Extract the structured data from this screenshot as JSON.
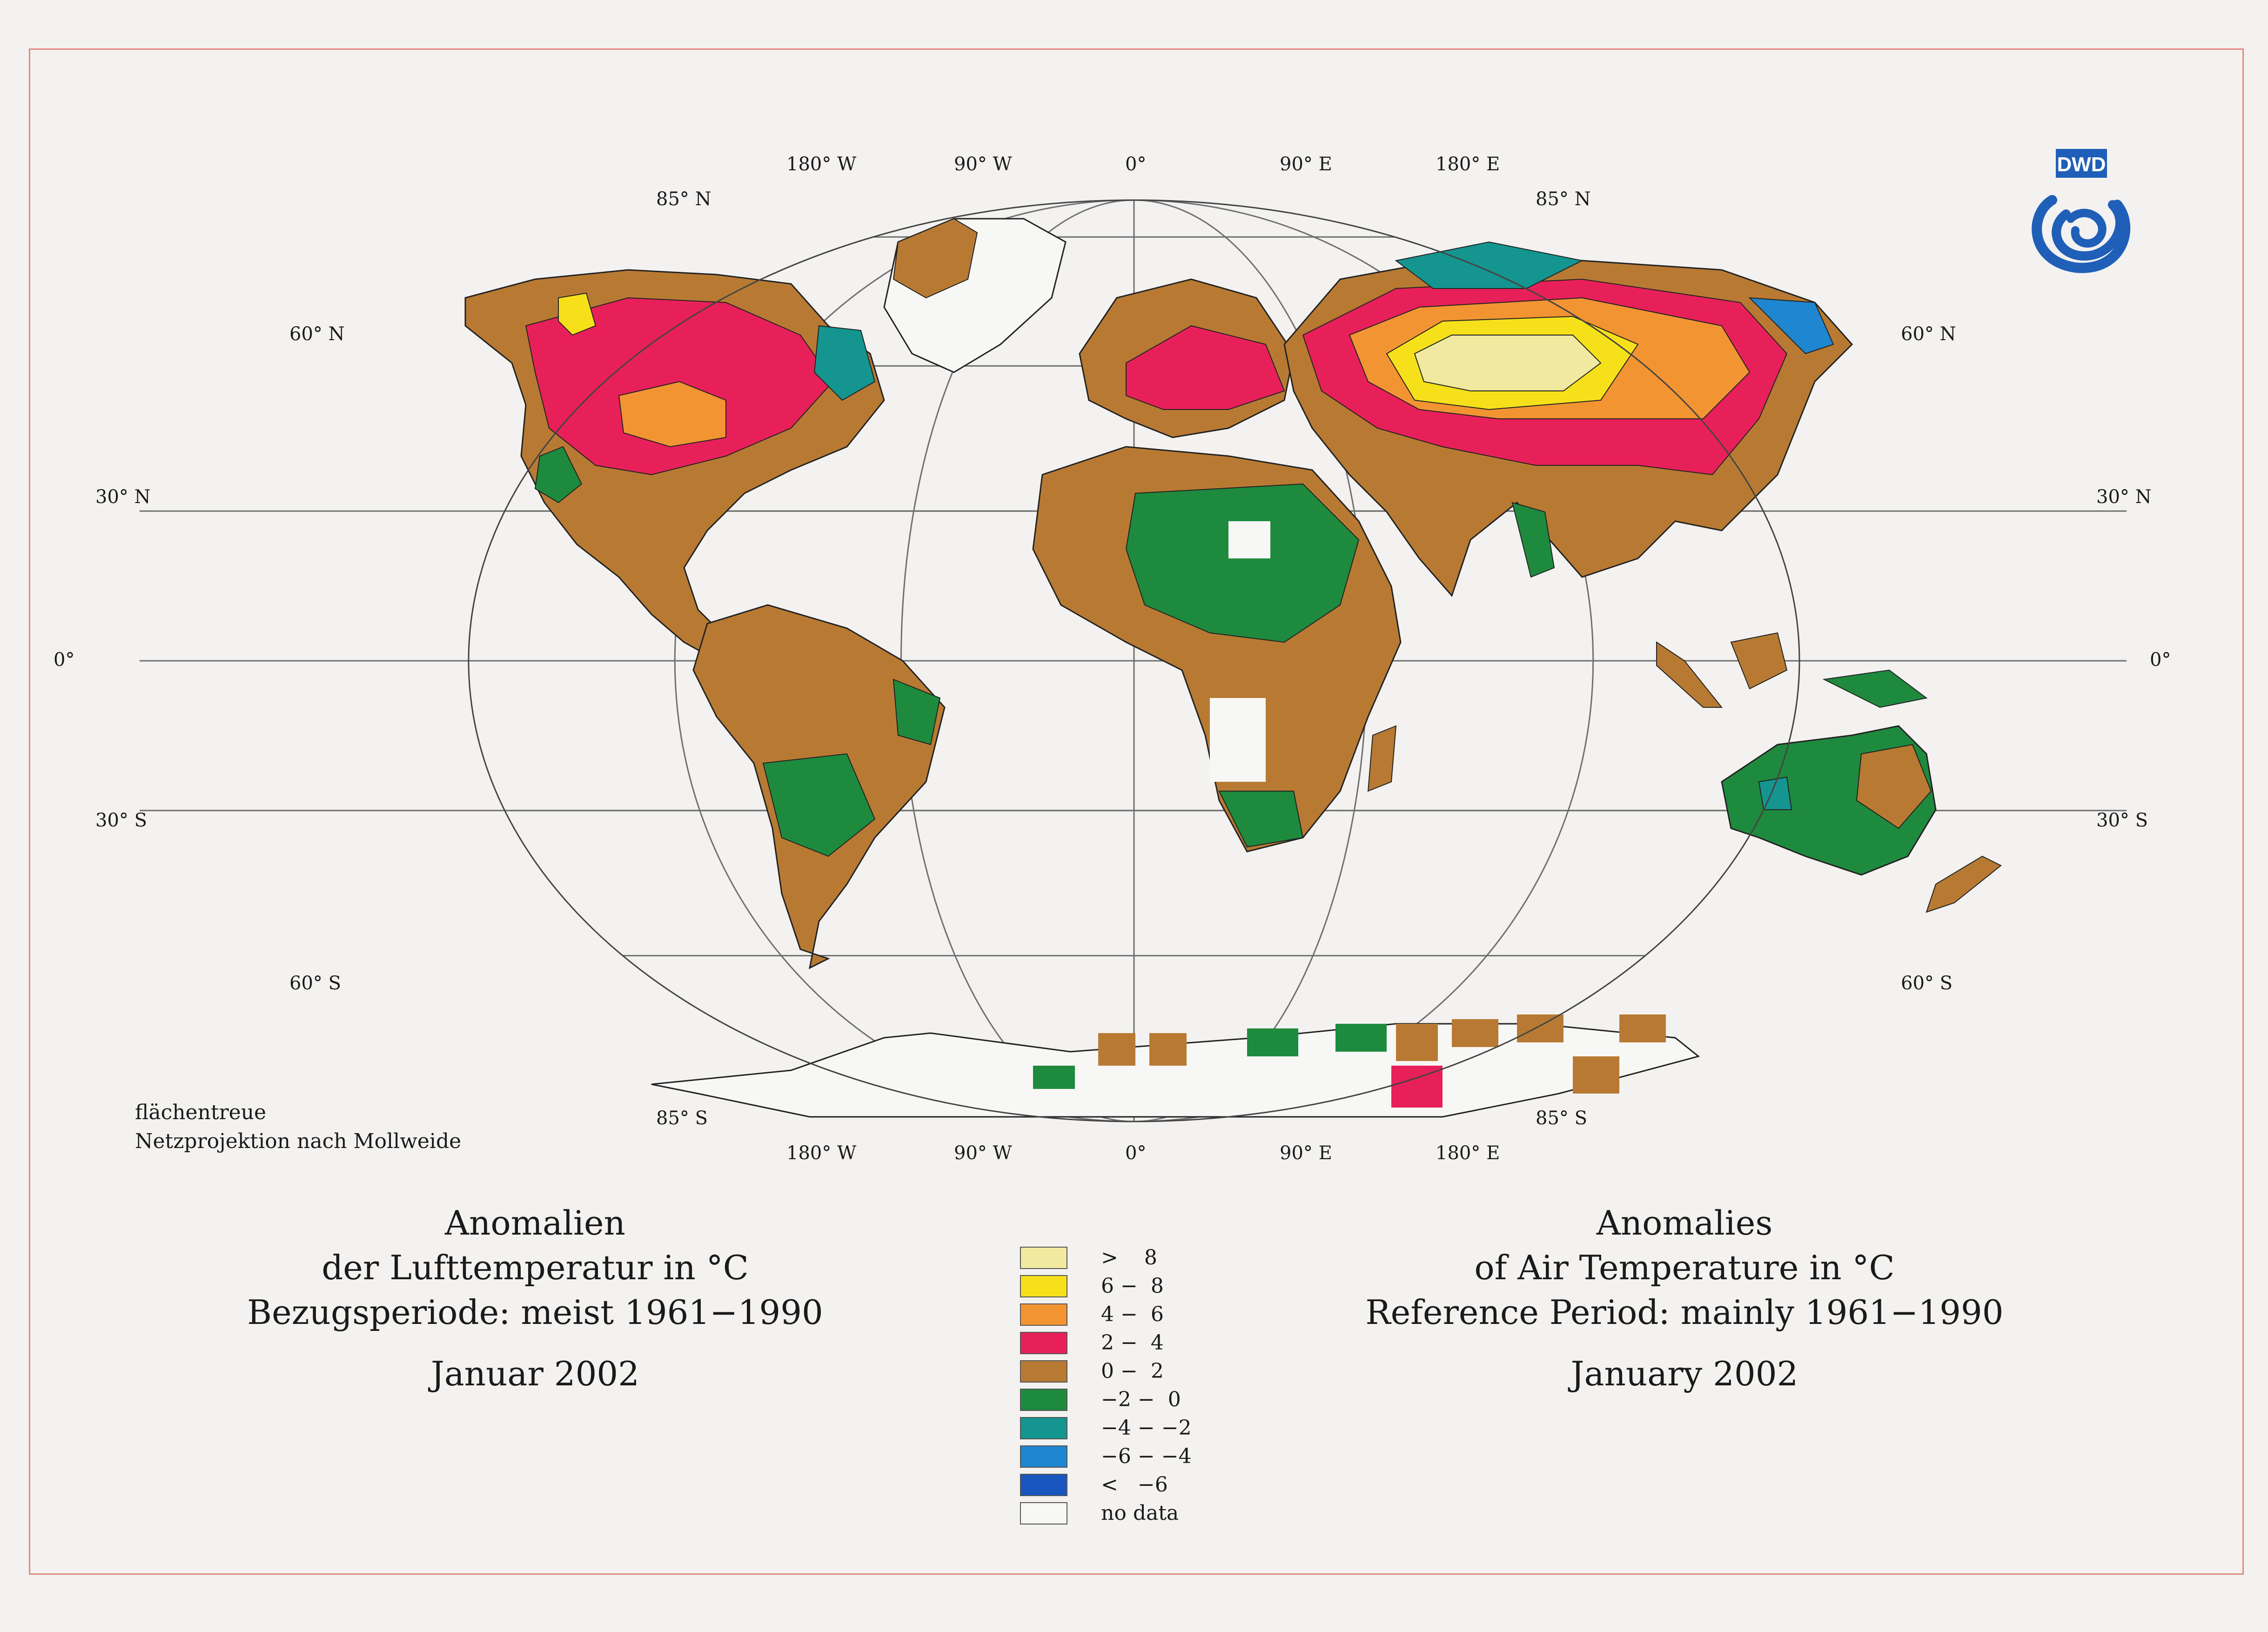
{
  "map": {
    "projection_note": [
      "flächentreue",
      "Netzprojektion nach Mollweide"
    ],
    "longitude_labels": [
      "180° W",
      "90° W",
      "0°",
      "90° E",
      "180° E"
    ],
    "latitude_labels_left": [
      "85° N",
      "60° N",
      "30° N",
      "0°",
      "30° S",
      "60° S",
      "85° S"
    ],
    "latitude_labels_right": [
      "85° N",
      "60° N",
      "30° N",
      "0°",
      "30° S",
      "60° S",
      "85° S"
    ],
    "grid_color": "#6f6f6f",
    "coast_color": "#222222"
  },
  "title_german": {
    "line1": "Anomalien",
    "line2": "der Lufttemperatur in °C",
    "line3": "Bezugsperiode: meist 1961−1990",
    "month": "Januar 2002"
  },
  "title_english": {
    "line1": "Anomalies",
    "line2": "of Air Temperature in °C",
    "line3": "Reference Period: mainly 1961−1990",
    "month": "January 2002"
  },
  "legend": [
    {
      "label": ">    8",
      "color": "#f2e9a0"
    },
    {
      "label": "6 −  8",
      "color": "#f6e01a"
    },
    {
      "label": "4 −  6",
      "color": "#f39432"
    },
    {
      "label": "2 −  4",
      "color": "#e8205a"
    },
    {
      "label": "0 −  2",
      "color": "#b87a33"
    },
    {
      "label": "−2 −  0",
      "color": "#1e8a3e"
    },
    {
      "label": "−4 − −2",
      "color": "#14958f"
    },
    {
      "label": "−6 − −4",
      "color": "#1f86d1"
    },
    {
      "label": "<   −6",
      "color": "#1a56c0"
    },
    {
      "label": "no data",
      "color": "#f7f7f5"
    }
  ],
  "logo": {
    "text": "DWD",
    "color": "#1f5fb8"
  }
}
